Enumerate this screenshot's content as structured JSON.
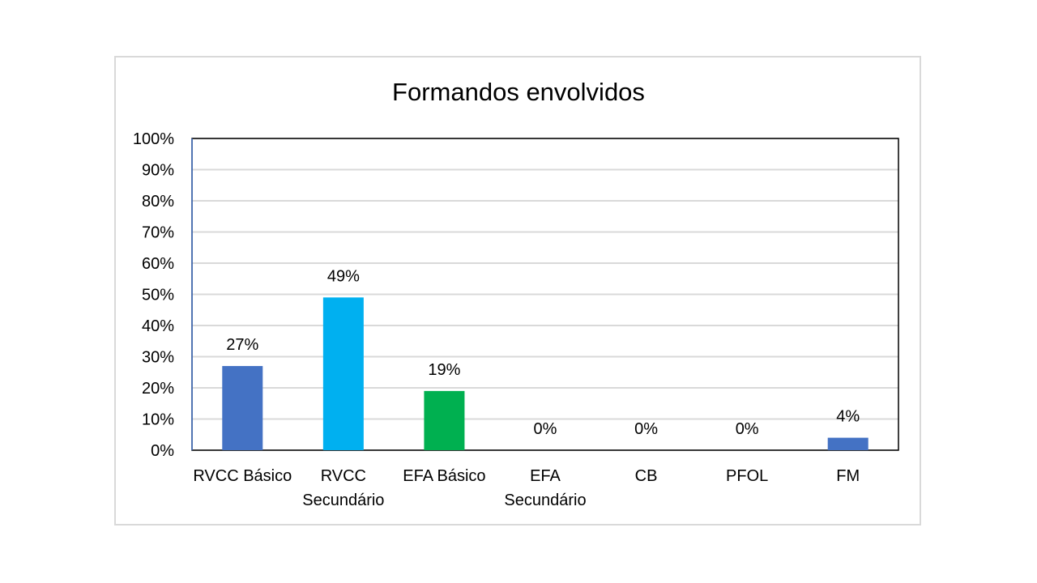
{
  "chart_data": {
    "type": "bar",
    "title": "Formandos envolvidos",
    "xlabel": "",
    "ylabel": "",
    "categories": [
      "RVCC Básico",
      "RVCC Secundário",
      "EFA Básico",
      "EFA Secundário",
      "CB",
      "PFOL",
      "FM"
    ],
    "category_lines": [
      [
        "RVCC Básico"
      ],
      [
        "RVCC",
        "Secundário"
      ],
      [
        "EFA Básico"
      ],
      [
        "EFA",
        "Secundário"
      ],
      [
        "CB"
      ],
      [
        "PFOL"
      ],
      [
        "FM"
      ]
    ],
    "values": [
      27,
      49,
      19,
      0,
      0,
      0,
      4
    ],
    "data_labels": [
      "27%",
      "49%",
      "19%",
      "0%",
      "0%",
      "0%",
      "4%"
    ],
    "bar_colors": [
      "#4472c4",
      "#00b0f0",
      "#00b050",
      "#4472c4",
      "#4472c4",
      "#4472c4",
      "#4472c4"
    ],
    "ylim": [
      0,
      100
    ],
    "yticks": [
      0,
      10,
      20,
      30,
      40,
      50,
      60,
      70,
      80,
      90,
      100
    ],
    "ytick_labels": [
      "0%",
      "10%",
      "20%",
      "30%",
      "40%",
      "50%",
      "60%",
      "70%",
      "80%",
      "90%",
      "100%"
    ],
    "grid": true,
    "legend": "none"
  }
}
